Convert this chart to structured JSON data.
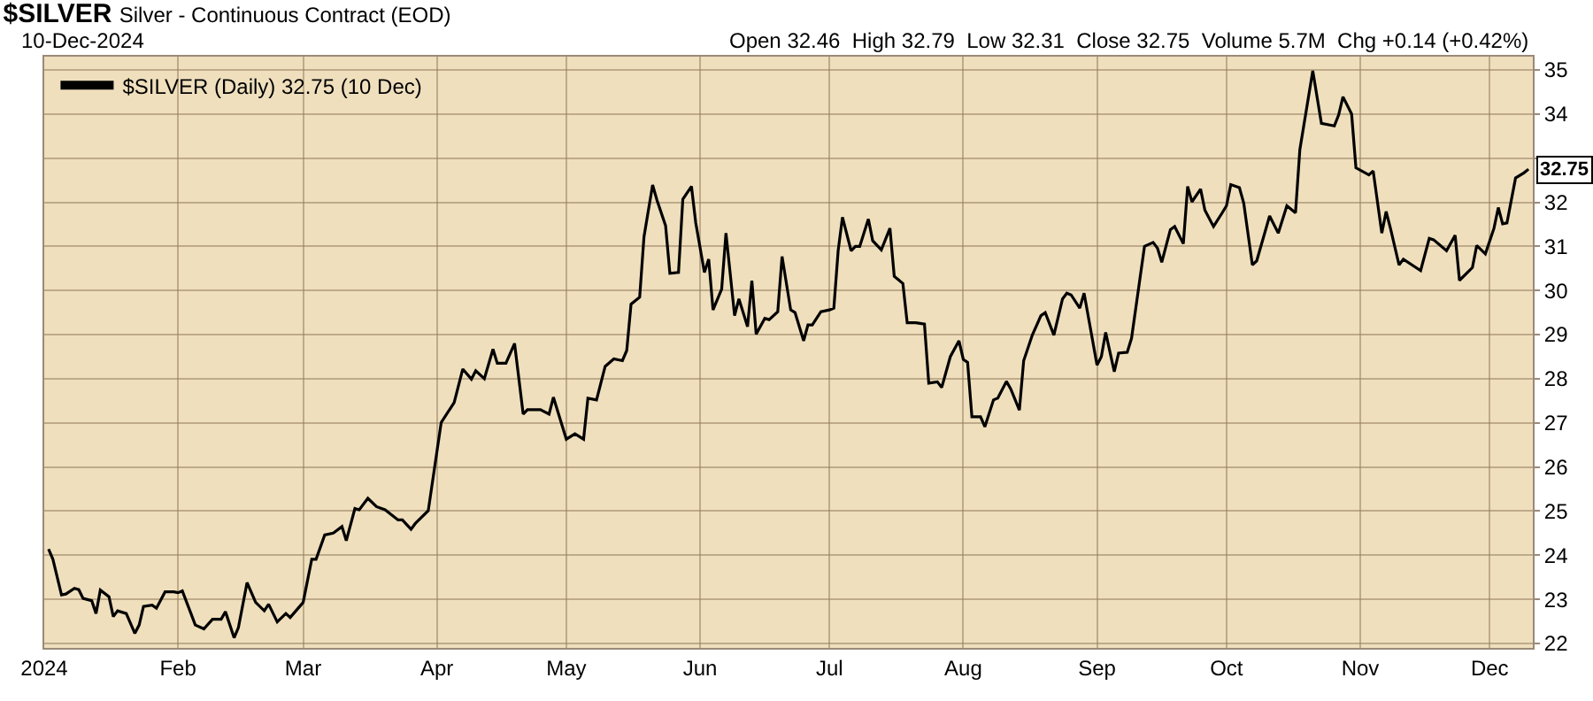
{
  "chart_data": {
    "type": "line",
    "title": "$SILVER",
    "subtitle": "Silver - Continuous Contract (EOD)",
    "annotations": [
      "10-Dec-2024",
      "Open 32.46  High 32.79  Low 32.31  Close 32.75  Volume 5.7M  Chg +0.14 (+0.42%)",
      {
        "text": "32.75",
        "x": "2024-12-10",
        "y": 32.75
      }
    ],
    "x": [
      "2024-01-02",
      "2024-01-03",
      "2024-01-05",
      "2024-01-06",
      "2024-01-08",
      "2024-01-09",
      "2024-01-10",
      "2024-01-12",
      "2024-01-13",
      "2024-01-14",
      "2024-01-16",
      "2024-01-17",
      "2024-01-18",
      "2024-01-20",
      "2024-01-22",
      "2024-01-23",
      "2024-01-24",
      "2024-01-26",
      "2024-01-27",
      "2024-01-29",
      "2024-01-31",
      "2024-02-01",
      "2024-02-02",
      "2024-02-04",
      "2024-02-05",
      "2024-02-07",
      "2024-02-09",
      "2024-02-11",
      "2024-02-12",
      "2024-02-14",
      "2024-02-15",
      "2024-02-17",
      "2024-02-19",
      "2024-02-21",
      "2024-02-22",
      "2024-02-24",
      "2024-02-26",
      "2024-02-27",
      "2024-03-01",
      "2024-03-03",
      "2024-03-04",
      "2024-03-06",
      "2024-03-08",
      "2024-03-10",
      "2024-03-11",
      "2024-03-13",
      "2024-03-14",
      "2024-03-16",
      "2024-03-18",
      "2024-03-20",
      "2024-03-23",
      "2024-03-24",
      "2024-03-26",
      "2024-03-27",
      "2024-03-30",
      "2024-04-02",
      "2024-04-05",
      "2024-04-07",
      "2024-04-09",
      "2024-04-10",
      "2024-04-12",
      "2024-04-14",
      "2024-04-15",
      "2024-04-17",
      "2024-04-19",
      "2024-04-21",
      "2024-04-22",
      "2024-04-25",
      "2024-04-27",
      "2024-04-28",
      "2024-05-01",
      "2024-05-03",
      "2024-05-05",
      "2024-05-06",
      "2024-05-08",
      "2024-05-10",
      "2024-05-12",
      "2024-05-14",
      "2024-05-15",
      "2024-05-16",
      "2024-05-18",
      "2024-05-19",
      "2024-05-21",
      "2024-05-22",
      "2024-05-24",
      "2024-05-25",
      "2024-05-27",
      "2024-05-28",
      "2024-05-30",
      "2024-05-31",
      "2024-06-02",
      "2024-06-03",
      "2024-06-04",
      "2024-06-06",
      "2024-06-07",
      "2024-06-09",
      "2024-06-10",
      "2024-06-12",
      "2024-06-13",
      "2024-06-14",
      "2024-06-16",
      "2024-06-17",
      "2024-06-19",
      "2024-06-20",
      "2024-06-22",
      "2024-06-23",
      "2024-06-25",
      "2024-06-26",
      "2024-06-27",
      "2024-06-29",
      "2024-07-01",
      "2024-07-02",
      "2024-07-03",
      "2024-07-04",
      "2024-07-06",
      "2024-07-07",
      "2024-07-08",
      "2024-07-10",
      "2024-07-11",
      "2024-07-13",
      "2024-07-15",
      "2024-07-16",
      "2024-07-18",
      "2024-07-19",
      "2024-07-21",
      "2024-07-23",
      "2024-07-24",
      "2024-07-26",
      "2024-07-27",
      "2024-07-29",
      "2024-07-31",
      "2024-08-01",
      "2024-08-02",
      "2024-08-03",
      "2024-08-05",
      "2024-08-06",
      "2024-08-08",
      "2024-08-09",
      "2024-08-11",
      "2024-08-12",
      "2024-08-14",
      "2024-08-15",
      "2024-08-17",
      "2024-08-19",
      "2024-08-20",
      "2024-08-22",
      "2024-08-24",
      "2024-08-25",
      "2024-08-26",
      "2024-08-28",
      "2024-08-29",
      "2024-09-01",
      "2024-09-02",
      "2024-09-03",
      "2024-09-05",
      "2024-09-06",
      "2024-09-08",
      "2024-09-09",
      "2024-09-12",
      "2024-09-14",
      "2024-09-15",
      "2024-09-16",
      "2024-09-18",
      "2024-09-19",
      "2024-09-21",
      "2024-09-22",
      "2024-09-23",
      "2024-09-25",
      "2024-09-26",
      "2024-09-28",
      "2024-09-30",
      "2024-10-01",
      "2024-10-02",
      "2024-10-04",
      "2024-10-05",
      "2024-10-07",
      "2024-10-08",
      "2024-10-11",
      "2024-10-13",
      "2024-10-15",
      "2024-10-17",
      "2024-10-18",
      "2024-10-21",
      "2024-10-23",
      "2024-10-26",
      "2024-10-27",
      "2024-10-28",
      "2024-10-30",
      "2024-10-31",
      "2024-11-03",
      "2024-11-04",
      "2024-11-06",
      "2024-11-07",
      "2024-11-08",
      "2024-11-10",
      "2024-11-11",
      "2024-11-15",
      "2024-11-17",
      "2024-11-18",
      "2024-11-21",
      "2024-11-23",
      "2024-11-24",
      "2024-11-27",
      "2024-11-28",
      "2024-11-30",
      "2024-12-02",
      "2024-12-03",
      "2024-12-04",
      "2024-12-05",
      "2024-12-07",
      "2024-12-09",
      "2024-12-10"
    ],
    "series": [
      {
        "name": "$SILVER (Daily) 32.75 (10 Dec)",
        "color": "#000000",
        "values": [
          24.14,
          23.91,
          23.1,
          23.12,
          23.25,
          23.22,
          23.02,
          22.97,
          22.68,
          23.21,
          23.06,
          22.61,
          22.74,
          22.68,
          22.23,
          22.42,
          22.84,
          22.87,
          22.8,
          23.17,
          23.17,
          23.15,
          23.19,
          22.68,
          22.42,
          22.33,
          22.55,
          22.55,
          22.72,
          22.13,
          22.36,
          23.38,
          22.93,
          22.74,
          22.89,
          22.49,
          22.68,
          22.59,
          22.93,
          23.91,
          23.91,
          24.46,
          24.5,
          24.65,
          24.33,
          25.06,
          25.03,
          25.29,
          25.1,
          25.03,
          24.8,
          24.8,
          24.59,
          24.72,
          25.01,
          27.01,
          27.46,
          28.22,
          27.99,
          28.18,
          28.0,
          28.67,
          28.35,
          28.35,
          28.8,
          27.2,
          27.3,
          27.3,
          27.2,
          27.58,
          26.63,
          26.75,
          26.63,
          27.56,
          27.52,
          28.28,
          28.45,
          28.41,
          28.64,
          29.69,
          29.85,
          31.22,
          32.39,
          32.05,
          31.47,
          30.39,
          30.41,
          32.07,
          32.36,
          31.53,
          30.41,
          30.71,
          29.56,
          30.03,
          31.3,
          29.43,
          29.81,
          29.18,
          30.22,
          29.01,
          29.37,
          29.34,
          29.52,
          30.77,
          29.56,
          29.5,
          28.86,
          29.22,
          29.22,
          29.52,
          29.56,
          29.6,
          30.9,
          31.66,
          30.9,
          31.0,
          31.0,
          31.62,
          31.13,
          30.92,
          31.41,
          30.32,
          30.16,
          29.27,
          29.27,
          29.24,
          27.9,
          27.93,
          27.8,
          28.5,
          28.86,
          28.44,
          28.37,
          27.14,
          27.14,
          26.91,
          27.52,
          27.56,
          27.94,
          27.77,
          27.29,
          28.41,
          28.99,
          29.43,
          29.5,
          28.99,
          29.81,
          29.94,
          29.9,
          29.6,
          29.94,
          28.31,
          28.5,
          29.05,
          28.16,
          28.58,
          28.6,
          28.92,
          31.0,
          31.09,
          30.96,
          30.64,
          31.38,
          31.45,
          31.06,
          32.36,
          32.01,
          32.3,
          31.82,
          31.45,
          31.76,
          31.92,
          32.4,
          32.33,
          31.98,
          30.58,
          30.67,
          31.69,
          31.3,
          31.92,
          31.76,
          33.19,
          34.98,
          33.79,
          33.73,
          33.98,
          34.39,
          34.0,
          32.78,
          32.62,
          32.71,
          31.3,
          31.79,
          31.41,
          30.58,
          30.71,
          30.45,
          31.18,
          31.15,
          30.9,
          31.25,
          30.23,
          30.52,
          31.02,
          30.83,
          31.41,
          31.88,
          31.51,
          31.53,
          32.55,
          32.67,
          32.75
        ]
      }
    ],
    "xlim": [
      "2024-01-01",
      "2024-12-11"
    ],
    "xticks": [
      {
        "value": "2024-01-01",
        "label": "2024"
      },
      {
        "value": "2024-02-01",
        "label": "Feb"
      },
      {
        "value": "2024-03-01",
        "label": "Mar"
      },
      {
        "value": "2024-04-01",
        "label": "Apr"
      },
      {
        "value": "2024-05-01",
        "label": "May"
      },
      {
        "value": "2024-06-01",
        "label": "Jun"
      },
      {
        "value": "2024-07-01",
        "label": "Jul"
      },
      {
        "value": "2024-08-01",
        "label": "Aug"
      },
      {
        "value": "2024-09-01",
        "label": "Sep"
      },
      {
        "value": "2024-10-01",
        "label": "Oct"
      },
      {
        "value": "2024-11-01",
        "label": "Nov"
      },
      {
        "value": "2024-12-01",
        "label": "Dec"
      }
    ],
    "ylim": [
      21.9,
      35.3
    ],
    "yticks": [
      22,
      23,
      24,
      25,
      26,
      27,
      28,
      29,
      30,
      31,
      32,
      {
        "value": 33,
        "label": null
      },
      34,
      35
    ],
    "grid": true,
    "legend": "top left",
    "marker": "none",
    "line_style": "solid"
  }
}
